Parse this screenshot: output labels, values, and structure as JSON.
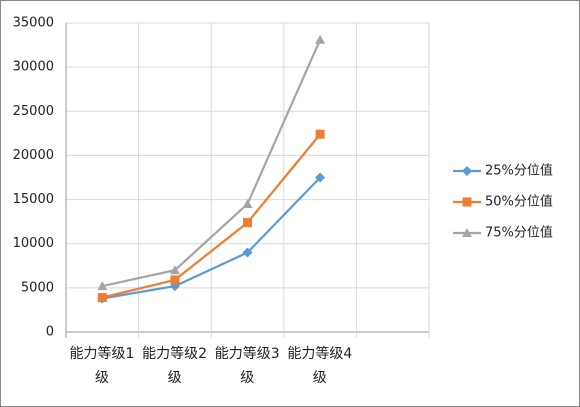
{
  "chart_data": {
    "type": "line",
    "categories": [
      "能力等级1级",
      "能力等级2级",
      "能力等级3级",
      "能力等级4级",
      null
    ],
    "series": [
      {
        "name": "25%分位值",
        "color": "#5b9bd5",
        "marker": "diamond",
        "values": [
          3800,
          5200,
          9000,
          17500,
          null
        ]
      },
      {
        "name": "50%分位值",
        "color": "#ed7d31",
        "marker": "square",
        "values": [
          3900,
          5900,
          12400,
          22400,
          null
        ]
      },
      {
        "name": "75%分位值",
        "color": "#a5a5a5",
        "marker": "triangle",
        "values": [
          5200,
          7000,
          14500,
          33100,
          null
        ]
      }
    ],
    "ylim": [
      0,
      35000
    ],
    "yticks": [
      0,
      5000,
      10000,
      15000,
      20000,
      25000,
      30000,
      35000
    ],
    "grid": true,
    "legend": "right"
  }
}
